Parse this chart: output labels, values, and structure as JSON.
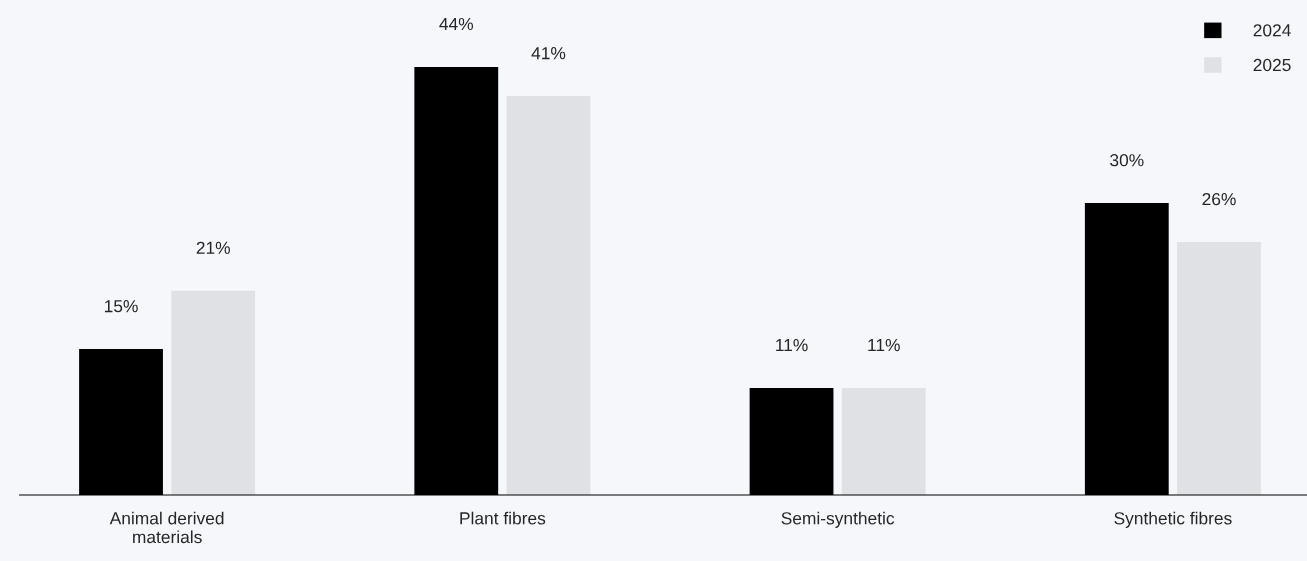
{
  "chart_data": {
    "type": "bar",
    "categories": [
      "Animal derived\nmaterials",
      "Plant fibres",
      "Semi-synthetic",
      "Synthetic fibres"
    ],
    "series": [
      {
        "name": "2024",
        "color": "#000000",
        "values": [
          15,
          44,
          11,
          30
        ],
        "value_labels": [
          "15%",
          "44%",
          "11%",
          "30%"
        ]
      },
      {
        "name": "2025",
        "color": "#e0e1e4",
        "values": [
          21,
          41,
          11,
          26
        ],
        "value_labels": [
          "21%",
          "41%",
          "11%",
          "26%"
        ]
      }
    ],
    "grid": false,
    "legend": "top right"
  }
}
